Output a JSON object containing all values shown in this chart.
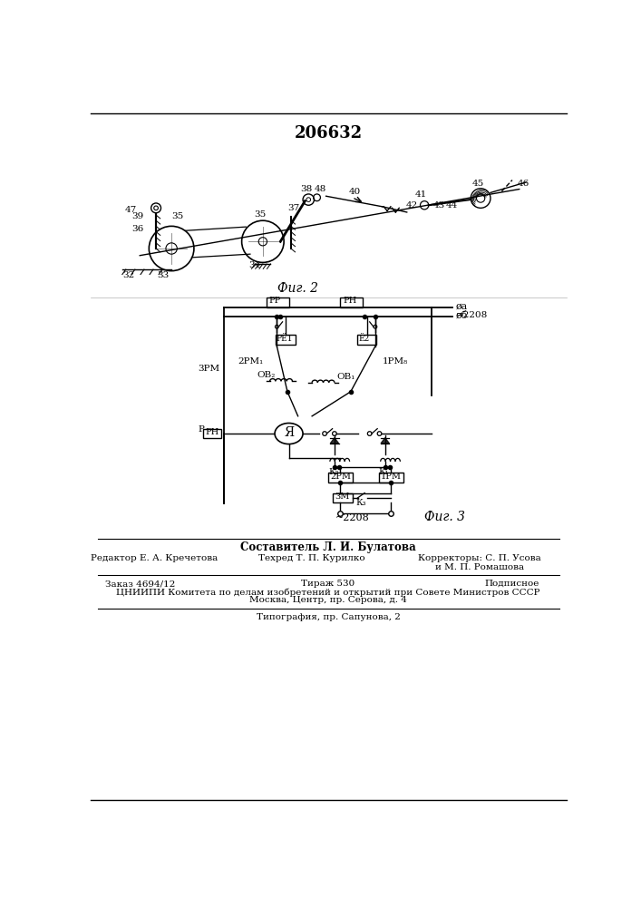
{
  "patent_number": "206632",
  "fig2_label": "Фиг. 2",
  "fig3_label": "Фиг. 3",
  "composer": "Составитель Л. И. Булатова",
  "editor": "Редактор Е. А. Кречетова",
  "techred": "Техред Т. П. Курилко",
  "correctors": "Корректоры: С. П. Усова",
  "correctors2": "и М. П. Ромашова",
  "order": "Заказ 4694/12",
  "edition": "Тираж 530",
  "signed": "Подписное",
  "org_line1": "ЦНИИПИ Комитета по делам изобретений и открытий при Совете Министров СССР",
  "org_line2": "Москва, Центр, пр. Серова, д. 4",
  "typography": "Типография, пр. Сапунова, 2",
  "bg_color": "#ffffff",
  "line_color": "#000000",
  "text_color": "#000000"
}
